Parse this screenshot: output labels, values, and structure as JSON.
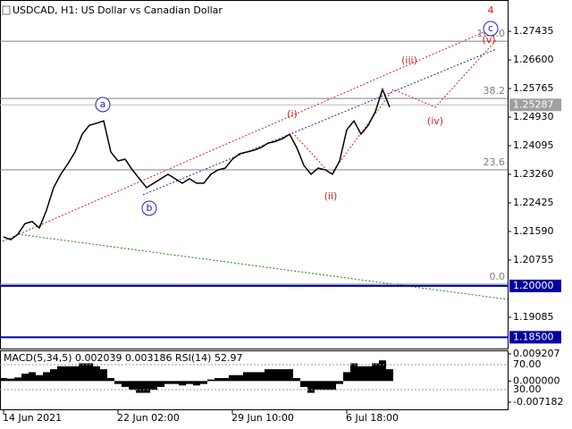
{
  "header": {
    "title": "USDCAD, H1:  US Dollar vs Canadian Dollar"
  },
  "chart_data": [
    {
      "type": "line",
      "categories": [
        "14 Jun 2021",
        null,
        null,
        null,
        null,
        null,
        null,
        null,
        null,
        null,
        null,
        null,
        null,
        null,
        null,
        null,
        "22 Jun 02:00",
        null,
        null,
        null,
        null,
        null,
        null,
        null,
        null,
        null,
        null,
        null,
        null,
        null,
        null,
        null,
        "29 Jun 10:00",
        null,
        null,
        null,
        null,
        null,
        null,
        null,
        null,
        null,
        null,
        null,
        null,
        null,
        null,
        null,
        "6 Jul 18:00",
        null,
        null,
        null,
        null,
        null,
        null
      ],
      "values": [
        1.2143,
        1.2135,
        1.2151,
        1.2182,
        1.2188,
        1.2169,
        1.2221,
        1.2287,
        1.2326,
        1.2357,
        1.2391,
        1.2443,
        1.2469,
        1.2475,
        1.2482,
        1.2391,
        1.2365,
        1.237,
        1.2339,
        1.2313,
        1.2287,
        1.23,
        1.2313,
        1.2326,
        1.2313,
        1.23,
        1.2313,
        1.23,
        1.23,
        1.2326,
        1.2339,
        1.2344,
        1.237,
        1.2386,
        1.2391,
        1.2396,
        1.2404,
        1.2417,
        1.2422,
        1.243,
        1.2443,
        1.2404,
        1.2352,
        1.2326,
        1.2344,
        1.2339,
        1.2326,
        1.2365,
        1.2456,
        1.2482,
        1.2443,
        1.2469,
        1.2509,
        1.2574,
        1.2522
      ],
      "color": "#000000",
      "ylim": [
        1.1817,
        1.2835
      ],
      "yticks": [
        1.27435,
        {
          "value": 1.266,
          "label": "1.26600"
        },
        1.25765,
        {
          "value": 1.2493,
          "label": "1.24930"
        },
        1.24095,
        {
          "value": 1.2326,
          "label": "1.23260"
        },
        1.22425,
        {
          "value": 1.2159,
          "label": "1.21590"
        },
        1.20755,
        1.19085
      ],
      "levels": [
        {
          "value": 1.2,
          "label": "1.20000",
          "color": "#0000a0"
        },
        {
          "value": 1.185,
          "label": "1.18500",
          "color": "#0000a0"
        }
      ],
      "current_price": {
        "value": 1.25287,
        "label": "1.25287",
        "color": "#a0a0a0"
      },
      "fib_levels": [
        {
          "value": 1.27147,
          "label": "100.0"
        },
        {
          "value": 1.25477,
          "label": "38.2"
        },
        {
          "value": 1.23389,
          "label": "23.6"
        },
        {
          "value": 1.2005,
          "label": "0.0"
        }
      ],
      "annotations": [
        {
          "text": "a",
          "color": "#2020c0"
        },
        {
          "text": "b",
          "color": "#2020c0"
        },
        {
          "text": "c",
          "color": "#2020c0"
        },
        {
          "text": "(i)",
          "color": "#d02020"
        },
        {
          "text": "(ii)",
          "color": "#d02020"
        },
        {
          "text": "(iii)",
          "color": "#d02020"
        },
        {
          "text": "(iv)",
          "color": "#d02020"
        },
        {
          "text": "(v)",
          "color": "#d02020"
        },
        {
          "text": "4",
          "color": "#d02020"
        }
      ]
    },
    {
      "type": "bar",
      "title": "MACD(5,34,5) 0.002039 0.003186 RSI(14) 52.97",
      "values": [
        0.001,
        0.0008,
        0.0012,
        0.0025,
        0.003,
        0.002,
        0.003,
        0.004,
        0.005,
        0.005,
        0.005,
        0.006,
        0.006,
        0.005,
        0.004,
        0.001,
        -0.001,
        -0.002,
        -0.003,
        -0.004,
        -0.004,
        -0.003,
        -0.002,
        -0.001,
        -0.001,
        -0.0015,
        -0.001,
        -0.0015,
        -0.001,
        0.0005,
        0.001,
        0.001,
        0.002,
        0.002,
        0.003,
        0.003,
        0.003,
        0.004,
        0.004,
        0.004,
        0.004,
        0.001,
        -0.002,
        -0.004,
        -0.003,
        -0.003,
        -0.003,
        -0.001,
        0.003,
        0.006,
        0.005,
        0.005,
        0.006,
        0.007,
        0.004
      ],
      "color": "#000000",
      "ylim": [
        -0.0096,
        0.0104
      ],
      "yticks": [
        0.009207,
        {
          "value": 0,
          "label": "0.000000"
        },
        -0.007182
      ],
      "y2lim": [
        -1.4,
        92.9
      ],
      "y2ticks": [
        {
          "value": 70,
          "label": "70.00"
        },
        {
          "value": 30,
          "label": "30.00"
        }
      ]
    }
  ]
}
